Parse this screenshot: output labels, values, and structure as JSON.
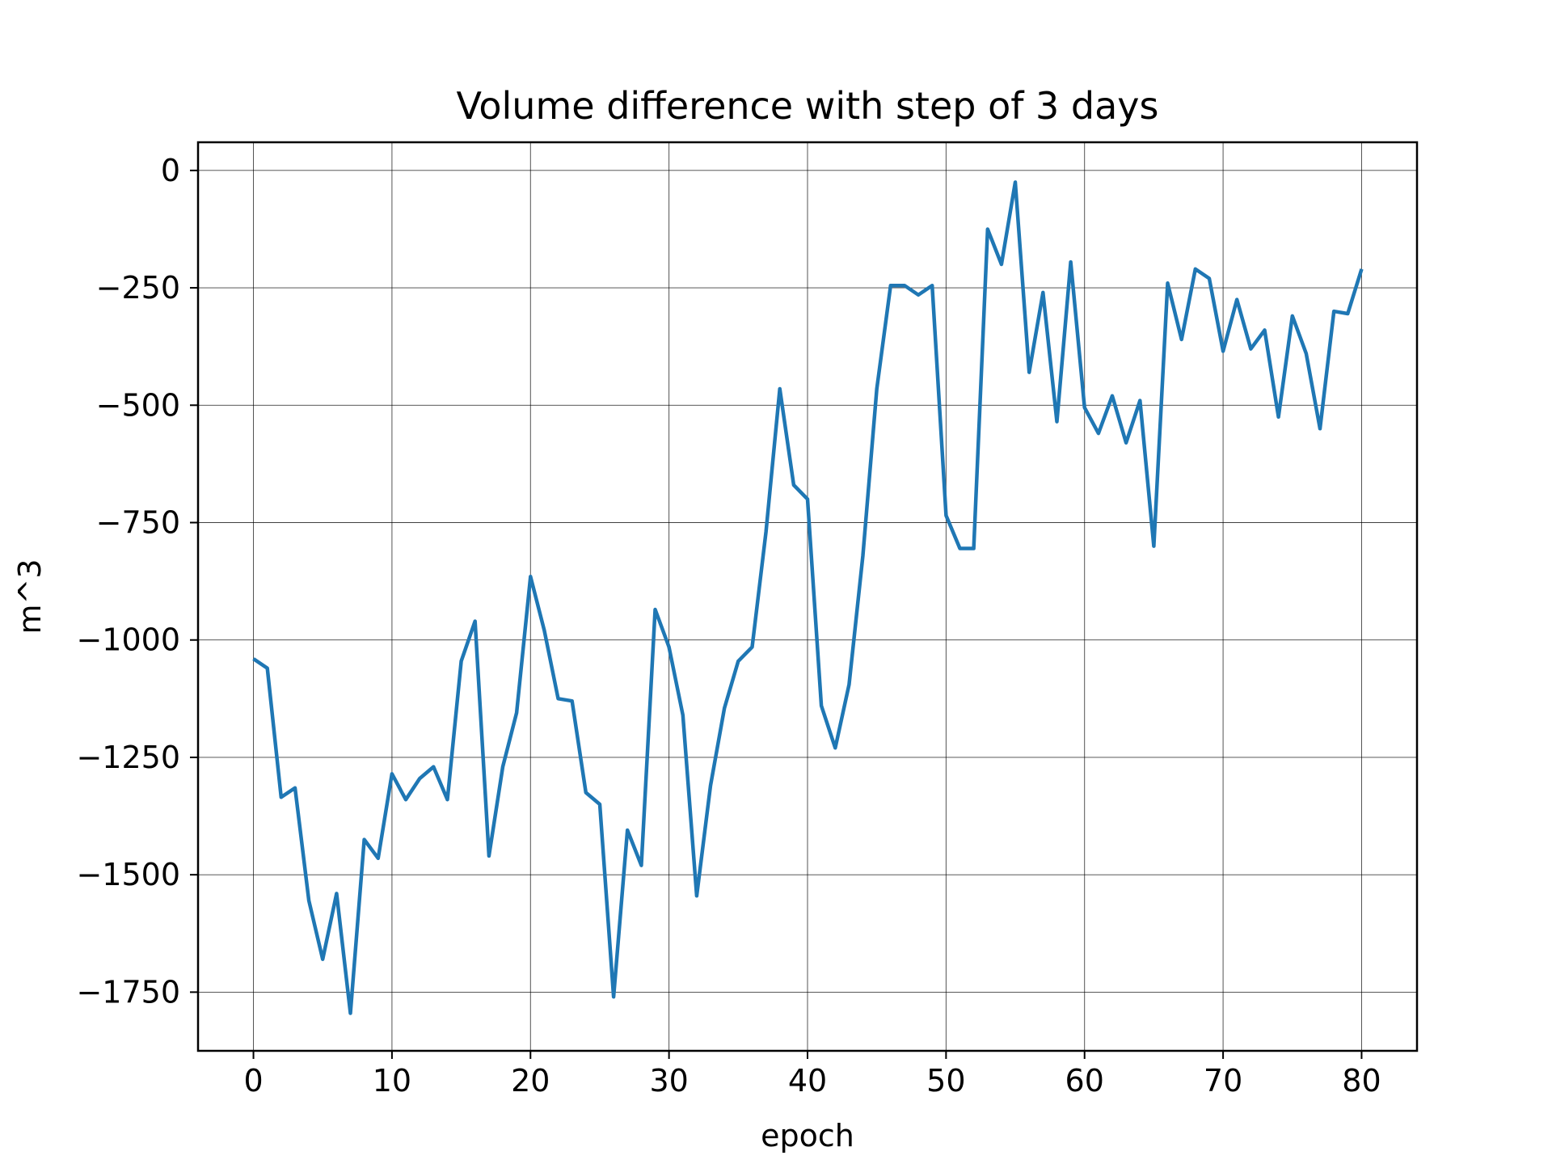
{
  "chart_data": {
    "type": "line",
    "title": "Volume difference with step of 3 days",
    "xlabel": "epoch",
    "ylabel": "m^3",
    "xlim": [
      -4,
      84
    ],
    "ylim": [
      -1875,
      60
    ],
    "xticks": [
      0,
      10,
      20,
      30,
      40,
      50,
      60,
      70,
      80
    ],
    "yticks": [
      0,
      -250,
      -500,
      -750,
      -1000,
      -1250,
      -1500,
      -1750
    ],
    "xtick_labels": [
      "0",
      "10",
      "20",
      "30",
      "40",
      "50",
      "60",
      "70",
      "80"
    ],
    "ytick_labels": [
      "0",
      "−250",
      "−500",
      "−750",
      "−1000",
      "−1250",
      "−1500",
      "−1750"
    ],
    "grid": true,
    "line_color": "#1f77b4",
    "series": [
      {
        "x": [
          0,
          1,
          2,
          3,
          4,
          5,
          6,
          7,
          8,
          9,
          10,
          11,
          12,
          13,
          14,
          15,
          16,
          17,
          18,
          19,
          20,
          21,
          22,
          23,
          24,
          25,
          26,
          27,
          28,
          29,
          30,
          31,
          32,
          33,
          34,
          35,
          36,
          37,
          38,
          39,
          40,
          41,
          42,
          43,
          44,
          45,
          46,
          47,
          48,
          49,
          50,
          51,
          52,
          53,
          54,
          55,
          56,
          57,
          58,
          59,
          60,
          61,
          62,
          63,
          64,
          65,
          66,
          67,
          68,
          69,
          70,
          71,
          72,
          73,
          74,
          75,
          76,
          77,
          78,
          79,
          80
        ],
        "values": [
          -1040,
          -1060,
          -1335,
          -1315,
          -1555,
          -1680,
          -1540,
          -1795,
          -1425,
          -1465,
          -1285,
          -1340,
          -1295,
          -1270,
          -1340,
          -1045,
          -960,
          -1460,
          -1270,
          -1155,
          -865,
          -980,
          -1125,
          -1130,
          -1325,
          -1350,
          -1760,
          -1405,
          -1480,
          -935,
          -1015,
          -1160,
          -1545,
          -1310,
          -1145,
          -1045,
          -1015,
          -770,
          -465,
          -670,
          -700,
          -1140,
          -1230,
          -1095,
          -820,
          -465,
          -245,
          -245,
          -265,
          -245,
          -735,
          -805,
          -805,
          -125,
          -200,
          -25,
          -430,
          -260,
          -535,
          -195,
          -505,
          -560,
          -480,
          -580,
          -490,
          -800,
          -240,
          -360,
          -210,
          -230,
          -385,
          -275,
          -380,
          -340,
          -525,
          -310,
          -390,
          -550,
          -300,
          -305,
          -210
        ]
      }
    ]
  }
}
